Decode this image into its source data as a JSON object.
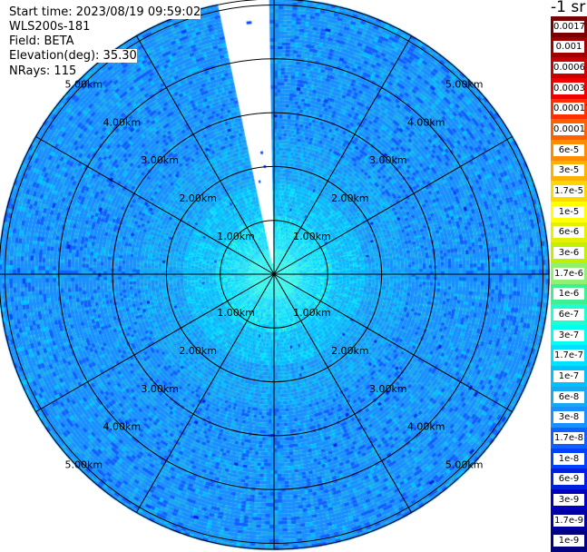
{
  "header": {
    "start_time": "Start time: 2023/08/19 09:59:02",
    "instrument": "WLS200s-181",
    "field": "Field: BETA",
    "elevation": "Elevation(deg): 35.30",
    "nrays": "NRays: 115"
  },
  "colorbar": {
    "unit": "-1 sr",
    "labels": [
      "0.0017",
      "0.001",
      "0.0006",
      "0.0003",
      "0.00017",
      "0.0001",
      "6e-5",
      "3e-5",
      "1.7e-5",
      "1e-5",
      "6e-6",
      "3e-6",
      "1.7e-6",
      "1e-6",
      "6e-7",
      "3e-7",
      "1.7e-7",
      "1e-7",
      "6e-8",
      "3e-8",
      "1.7e-8",
      "1e-8",
      "6e-9",
      "3e-9",
      "1.7e-9",
      "1e-9"
    ],
    "colors": [
      "#7a0000",
      "#a00000",
      "#c80000",
      "#ee0000",
      "#ff3000",
      "#ff6000",
      "#ff8c00",
      "#ffb000",
      "#ffd700",
      "#ffff00",
      "#e4f000",
      "#c0f000",
      "#90f070",
      "#40f090",
      "#20ffd0",
      "#00ffee",
      "#00e0ff",
      "#00c0ff",
      "#18a8f0",
      "#1890ff",
      "#1060ff",
      "#0040ff",
      "#0020e0",
      "#0000c0",
      "#0000a0",
      "#000080"
    ]
  },
  "range_labels": [
    "1.00km",
    "2.00km",
    "3.00km",
    "4.00km",
    "5.00km"
  ],
  "map": {
    "field_colors": [
      "#1890ff",
      "#1060ff",
      "#18a8f0",
      "#00c0ff",
      "#00e0ff",
      "#20ffd0"
    ],
    "missing_sector": "white wedge near north (no data rays)"
  }
}
